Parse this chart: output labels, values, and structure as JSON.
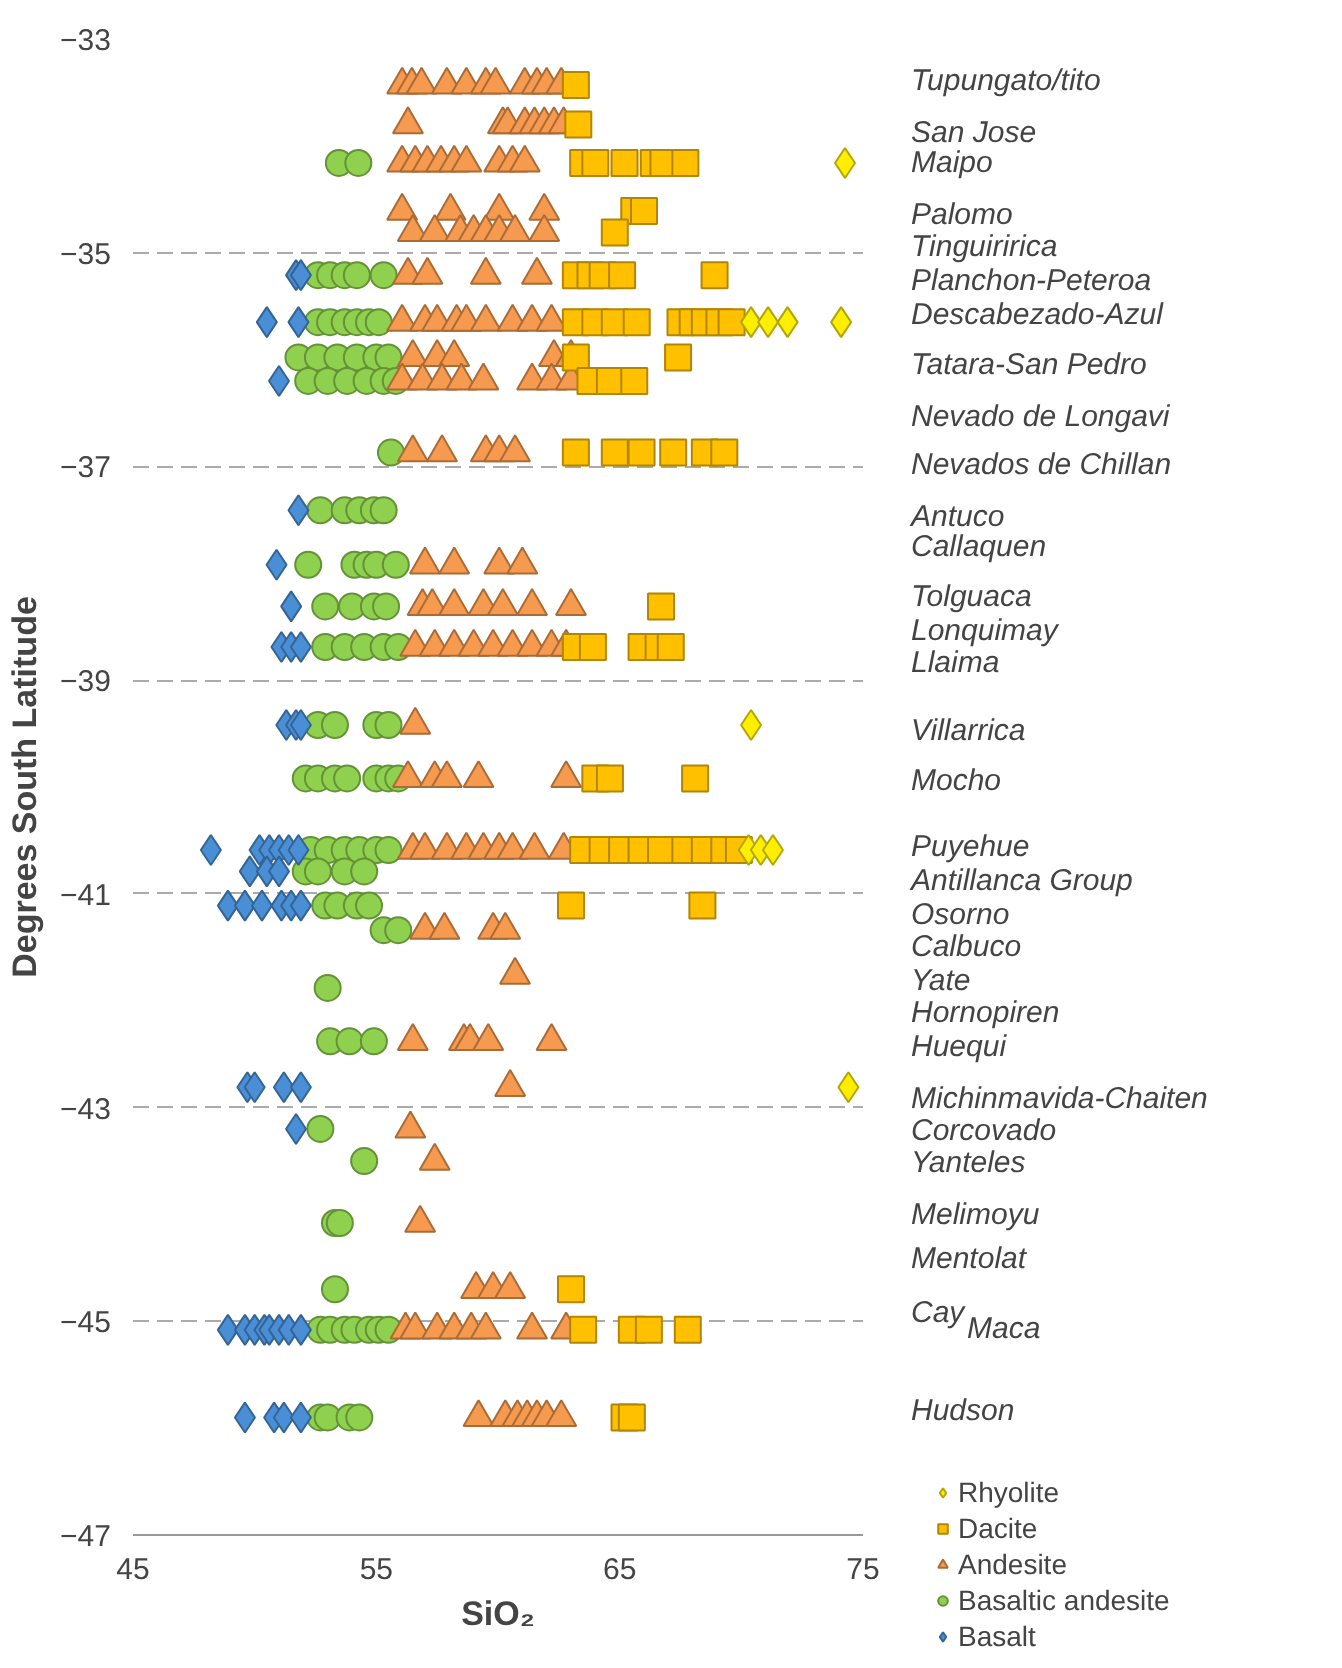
{
  "chart_data": {
    "type": "scatter",
    "xlabel": "SiO₂",
    "ylabel": "Degrees South Latitude",
    "xlim": [
      45,
      75
    ],
    "ylim": [
      -47,
      -33
    ],
    "xticks": [
      45,
      55,
      65,
      75
    ],
    "yticks": [
      -33,
      -35,
      -37,
      -39,
      -41,
      -43,
      -45,
      -47
    ],
    "grid": "y",
    "legend": "bottom right",
    "series": [
      {
        "name": "Rhyolite",
        "color": "#ffee00",
        "marker": "diamond",
        "x": [
          74.26,
          70.4,
          71.1,
          71.9,
          74.1,
          70.4,
          70.3,
          70.8,
          71.3,
          74.4
        ],
        "values": [
          -34.16,
          -35.65,
          -35.65,
          -35.65,
          -35.65,
          -39.42,
          -40.59,
          -40.59,
          -40.59,
          -42.81
        ]
      },
      {
        "name": "Dacite",
        "color": "#ffc000",
        "marker": "square",
        "x": [
          63.2,
          63.3,
          63.5,
          64.0,
          65.2,
          66.4,
          66.8,
          67.7,
          65.6,
          66.0,
          64.8,
          63.2,
          63.8,
          64.3,
          65.1,
          68.9,
          63.2,
          64.0,
          64.8,
          65.7,
          67.5,
          68.0,
          68.5,
          69.1,
          69.6,
          63.2,
          67.4,
          63.8,
          64.6,
          65.6,
          63.2,
          64.8,
          65.9,
          67.2,
          68.5,
          69.3,
          66.7,
          63.2,
          63.9,
          65.9,
          66.6,
          67.1,
          64.0,
          64.6,
          68.1,
          63.5,
          64.3,
          65.1,
          65.9,
          66.7,
          67.7,
          68.5,
          69.3,
          69.9,
          63.0,
          68.4,
          63.0,
          63.5,
          65.5,
          66.2,
          67.8,
          65.2,
          65.5
        ],
        "values": [
          -33.43,
          -33.8,
          -34.16,
          -34.16,
          -34.16,
          -34.16,
          -34.16,
          -34.16,
          -34.61,
          -34.61,
          -34.81,
          -35.21,
          -35.21,
          -35.21,
          -35.21,
          -35.21,
          -35.65,
          -35.65,
          -35.65,
          -35.65,
          -35.65,
          -35.65,
          -35.65,
          -35.65,
          -35.65,
          -35.98,
          -35.98,
          -36.2,
          -36.2,
          -36.2,
          -36.87,
          -36.87,
          -36.87,
          -36.87,
          -36.87,
          -36.87,
          -38.31,
          -38.69,
          -38.69,
          -38.69,
          -38.69,
          -38.69,
          -39.92,
          -39.92,
          -39.92,
          -40.59,
          -40.59,
          -40.59,
          -40.59,
          -40.59,
          -40.59,
          -40.59,
          -40.59,
          -40.59,
          -41.11,
          -41.11,
          -44.7,
          -45.08,
          -45.08,
          -45.08,
          -45.08,
          -45.9,
          -45.9
        ]
      },
      {
        "name": "Andesite",
        "color": "#f59a4f",
        "marker": "triangle",
        "x": [
          56.06,
          56.46,
          56.86,
          57.9,
          58.7,
          59.5,
          59.9,
          61.1,
          61.6,
          62.0,
          62.6,
          56.3,
          60.2,
          60.4,
          61.1,
          61.5,
          61.9,
          62.3,
          62.7,
          56.06,
          56.6,
          57.1,
          57.66,
          58.2,
          58.7,
          60.05,
          60.6,
          61.1,
          56.06,
          58.05,
          60.05,
          61.9,
          56.5,
          57.4,
          58.45,
          59.0,
          59.5,
          60.05,
          60.7,
          61.9,
          56.3,
          57.1,
          59.5,
          61.6,
          56.06,
          57.0,
          57.5,
          58.3,
          58.7,
          59.5,
          60.6,
          61.4,
          62.2,
          56.5,
          57.5,
          58.2,
          62.3,
          63.0,
          56.06,
          56.9,
          57.7,
          58.5,
          59.4,
          61.4,
          62.2,
          63.0,
          56.5,
          57.7,
          59.5,
          60.05,
          60.7,
          57.0,
          58.2,
          60.05,
          61.0,
          56.9,
          57.3,
          58.2,
          59.4,
          60.2,
          61.4,
          63.0,
          56.6,
          57.4,
          58.2,
          59.0,
          59.8,
          60.6,
          61.4,
          62.2,
          62.8,
          56.6,
          56.3,
          57.4,
          57.9,
          59.2,
          62.8,
          56.5,
          57.0,
          57.9,
          58.7,
          59.4,
          60.05,
          60.6,
          61.5,
          62.7,
          57.0,
          57.8,
          59.8,
          60.3,
          60.7,
          56.5,
          58.6,
          58.85,
          59.6,
          62.2,
          60.5,
          56.4,
          57.4,
          56.8,
          59.1,
          59.8,
          60.5,
          56.2,
          56.6,
          57.5,
          58.2,
          58.9,
          59.5,
          61.4,
          62.8,
          59.2,
          60.3,
          60.8,
          61.2,
          61.6,
          62.0,
          62.6
        ],
        "values": [
          -33.43,
          -33.43,
          -33.43,
          -33.43,
          -33.43,
          -33.43,
          -33.43,
          -33.43,
          -33.43,
          -33.43,
          -33.43,
          -33.8,
          -33.8,
          -33.8,
          -33.8,
          -33.8,
          -33.8,
          -33.8,
          -33.8,
          -34.16,
          -34.16,
          -34.16,
          -34.16,
          -34.16,
          -34.16,
          -34.16,
          -34.16,
          -34.16,
          -34.61,
          -34.61,
          -34.61,
          -34.61,
          -34.81,
          -34.81,
          -34.81,
          -34.81,
          -34.81,
          -34.81,
          -34.81,
          -34.81,
          -35.21,
          -35.21,
          -35.21,
          -35.21,
          -35.65,
          -35.65,
          -35.65,
          -35.65,
          -35.65,
          -35.65,
          -35.65,
          -35.65,
          -35.65,
          -35.98,
          -35.98,
          -35.98,
          -35.98,
          -35.98,
          -36.2,
          -36.2,
          -36.2,
          -36.2,
          -36.2,
          -36.2,
          -36.2,
          -36.2,
          -36.87,
          -36.87,
          -36.87,
          -36.87,
          -36.87,
          -37.92,
          -37.92,
          -37.92,
          -37.92,
          -38.31,
          -38.31,
          -38.31,
          -38.31,
          -38.31,
          -38.31,
          -38.31,
          -38.69,
          -38.69,
          -38.69,
          -38.69,
          -38.69,
          -38.69,
          -38.69,
          -38.69,
          -38.69,
          -39.42,
          -39.92,
          -39.92,
          -39.92,
          -39.92,
          -39.92,
          -40.59,
          -40.59,
          -40.59,
          -40.59,
          -40.59,
          -40.59,
          -40.59,
          -40.59,
          -40.59,
          -41.34,
          -41.34,
          -41.34,
          -41.34,
          -41.76,
          -42.38,
          -42.38,
          -42.38,
          -42.38,
          -42.38,
          -42.81,
          -43.2,
          -43.5,
          -44.08,
          -44.7,
          -44.7,
          -44.7,
          -45.08,
          -45.08,
          -45.08,
          -45.08,
          -45.08,
          -45.08,
          -45.08,
          -45.08,
          -45.9,
          -45.9,
          -45.9,
          -45.9,
          -45.9,
          -45.9,
          -45.9
        ]
      },
      {
        "name": "Basaltic andesite",
        "color": "#8fd14f",
        "marker": "circle",
        "x": [
          53.46,
          54.26,
          52.6,
          53.1,
          53.7,
          54.2,
          55.3,
          52.6,
          53.1,
          53.7,
          54.2,
          54.7,
          55.1,
          51.8,
          52.6,
          53.4,
          54.2,
          55.0,
          55.5,
          52.2,
          53.0,
          53.8,
          54.6,
          55.3,
          55.8,
          55.6,
          52.7,
          53.7,
          54.3,
          54.9,
          55.3,
          52.2,
          54.1,
          54.6,
          55.0,
          55.8,
          52.9,
          54.0,
          54.9,
          55.4,
          52.9,
          53.7,
          54.5,
          55.3,
          55.9,
          52.6,
          53.3,
          55.0,
          55.5,
          52.1,
          52.6,
          53.3,
          53.8,
          55.0,
          55.5,
          55.9,
          52.3,
          53.0,
          53.7,
          54.3,
          55.0,
          55.5,
          52.1,
          52.6,
          53.7,
          54.5,
          52.9,
          53.4,
          54.2,
          54.7,
          55.3,
          55.9,
          53.0,
          53.1,
          53.9,
          54.9,
          52.7,
          54.5,
          53.3,
          53.5,
          53.3,
          52.7,
          53.1,
          53.7,
          54.1,
          54.7,
          55.1,
          55.5,
          52.7,
          53.0,
          53.9,
          54.3
        ],
        "values": [
          -34.16,
          -34.16,
          -35.21,
          -35.21,
          -35.21,
          -35.21,
          -35.21,
          -35.65,
          -35.65,
          -35.65,
          -35.65,
          -35.65,
          -35.65,
          -35.98,
          -35.98,
          -35.98,
          -35.98,
          -35.98,
          -35.98,
          -36.2,
          -36.2,
          -36.2,
          -36.2,
          -36.2,
          -36.2,
          -36.87,
          -37.41,
          -37.41,
          -37.41,
          -37.41,
          -37.41,
          -37.92,
          -37.92,
          -37.92,
          -37.92,
          -37.92,
          -38.31,
          -38.31,
          -38.31,
          -38.31,
          -38.69,
          -38.69,
          -38.69,
          -38.69,
          -38.69,
          -39.42,
          -39.42,
          -39.42,
          -39.42,
          -39.92,
          -39.92,
          -39.92,
          -39.92,
          -39.92,
          -39.92,
          -39.92,
          -40.59,
          -40.59,
          -40.59,
          -40.59,
          -40.59,
          -40.59,
          -40.79,
          -40.79,
          -40.79,
          -40.79,
          -41.11,
          -41.11,
          -41.11,
          -41.11,
          -41.34,
          -41.34,
          -41.88,
          -42.38,
          -42.38,
          -42.38,
          -43.2,
          -43.5,
          -44.08,
          -44.08,
          -44.7,
          -45.08,
          -45.08,
          -45.08,
          -45.08,
          -45.08,
          -45.08,
          -45.08,
          -45.9,
          -45.9,
          -45.9,
          -45.9
        ]
      },
      {
        "name": "Basalt",
        "color": "#4a8fd6",
        "marker": "diamond",
        "x": [
          51.7,
          51.9,
          50.5,
          51.8,
          51.0,
          51.8,
          50.9,
          51.5,
          51.1,
          51.5,
          51.9,
          51.3,
          51.7,
          51.9,
          48.2,
          50.2,
          50.6,
          51.0,
          51.4,
          51.8,
          49.8,
          50.5,
          51.0,
          48.9,
          49.6,
          50.3,
          51.1,
          51.5,
          51.9,
          49.7,
          50.0,
          51.2,
          51.9,
          51.7,
          48.9,
          49.6,
          50.0,
          50.4,
          50.6,
          51.0,
          51.4,
          51.9,
          49.6,
          50.8,
          51.2,
          51.9
        ],
        "values": [
          -35.21,
          -35.21,
          -35.65,
          -35.65,
          -36.2,
          -37.41,
          -37.92,
          -38.31,
          -38.69,
          -38.69,
          -38.69,
          -39.42,
          -39.42,
          -39.42,
          -40.59,
          -40.59,
          -40.59,
          -40.59,
          -40.59,
          -40.59,
          -40.79,
          -40.79,
          -40.79,
          -41.11,
          -41.11,
          -41.11,
          -41.11,
          -41.11,
          -41.11,
          -42.81,
          -42.81,
          -42.81,
          -42.81,
          -43.2,
          -45.08,
          -45.08,
          -45.08,
          -45.08,
          -45.08,
          -45.08,
          -45.08,
          -45.08,
          -45.9,
          -45.9,
          -45.9,
          -45.9
        ]
      }
    ],
    "annotations": [
      "Tupungato/tito",
      "San Jose",
      "Maipo",
      "Palomo",
      "Tinguiririca",
      "Planchon-Peteroa",
      "Descabezado-Azul",
      "Tatara-San Pedro",
      "Nevado de Longavi",
      "Nevados de Chillan",
      "Antuco",
      "Callaquen",
      "Tolguaca",
      "Lonquimay",
      "Llaima",
      "Villarrica",
      "Mocho",
      "Puyehue",
      "Antillanca Group",
      "Osorno",
      "Calbuco",
      "Yate",
      "Hornopiren",
      "Huequi",
      "Michinmavida-Chaiten",
      "Corcovado",
      "Yanteles",
      "Melimoyu",
      "Mentolat",
      "Cay",
      "Maca",
      "Hudson"
    ]
  }
}
